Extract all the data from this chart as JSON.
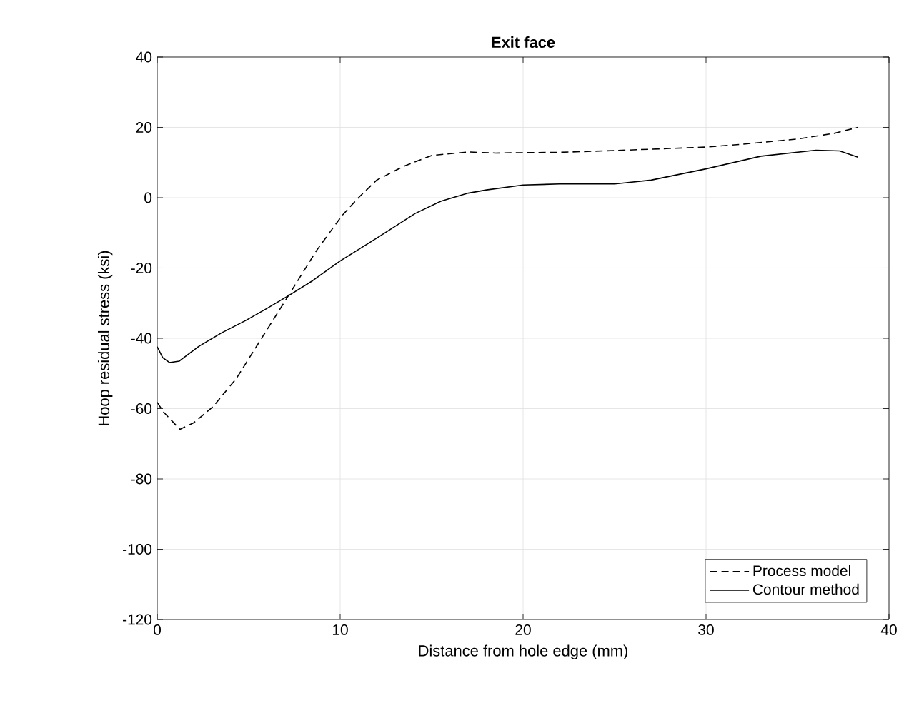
{
  "chart_data": {
    "type": "line",
    "title": "Exit face",
    "xlabel": "Distance from hole edge (mm)",
    "ylabel": "Hoop residual stress (ksi)",
    "xlim": [
      0,
      40
    ],
    "ylim": [
      -120,
      40
    ],
    "xticks": [
      0,
      10,
      20,
      30,
      40
    ],
    "yticks": [
      -120,
      -100,
      -80,
      -60,
      -40,
      -20,
      0,
      20,
      40
    ],
    "grid": true,
    "legend": "bottom right",
    "series": [
      {
        "name": "Process model",
        "color": "#000000",
        "line_style": "dashed",
        "x": [
          0,
          0.33,
          1.24,
          2,
          3.04,
          4.33,
          5.62,
          7.17,
          8.7,
          10.1,
          11,
          12,
          13.5,
          15,
          17,
          18.5,
          20,
          22,
          25,
          28,
          30,
          32,
          35,
          37,
          38.3
        ],
        "values": [
          -58.2,
          -60.9,
          -65.9,
          -64,
          -59.5,
          -51.4,
          -40.7,
          -27.9,
          -15.1,
          -5.1,
          0,
          5,
          9,
          12,
          13,
          12.7,
          12.8,
          12.9,
          13.4,
          14,
          14.4,
          15.2,
          16.7,
          18.3,
          20
        ]
      },
      {
        "name": "Contour method",
        "color": "#000000",
        "line_style": "solid",
        "x": [
          0,
          0.3,
          0.67,
          1.2,
          2.27,
          3.5,
          4.85,
          6,
          7.17,
          8.5,
          10,
          12,
          14.1,
          15.5,
          17,
          18,
          20,
          22,
          25,
          27,
          30,
          33,
          36,
          37.3,
          38.3
        ],
        "values": [
          -42.4,
          -45.5,
          -46.9,
          -46.5,
          -42.3,
          -38.5,
          -34.9,
          -31.5,
          -27.9,
          -23.6,
          -18,
          -11.5,
          -4.5,
          -1,
          1.3,
          2.2,
          3.6,
          3.9,
          3.9,
          5,
          8.2,
          11.8,
          13.5,
          13.3,
          11.5
        ]
      }
    ]
  }
}
